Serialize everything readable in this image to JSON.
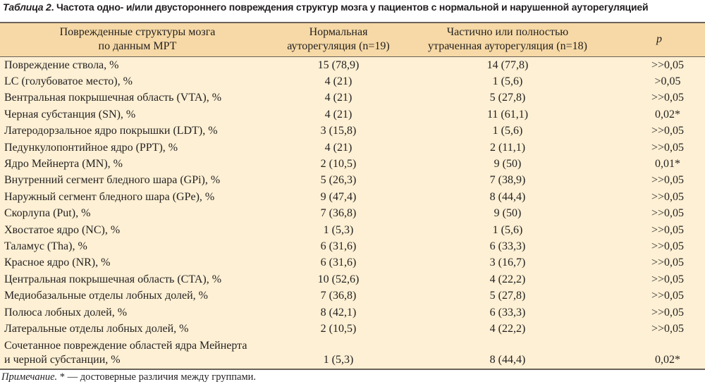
{
  "caption": {
    "label": "Таблица 2",
    "text": ". Частота одно- и/или двустороннего повреждения структур мозга у пациентов с нормальной и нарушенной ауторегуляцией"
  },
  "headers": {
    "structure_l1": "Поврежденные структуры мозга",
    "structure_l2": "по данным МРТ",
    "normal_l1": "Нормальная",
    "normal_l2": "ауторегуляция (n=19)",
    "impaired_l1": "Частично или полностью",
    "impaired_l2": "утраченная ауторегуляция (n=18)",
    "p": "p"
  },
  "rows": [
    {
      "name": "Повреждение ствола, %",
      "normal": "15 (78,9)",
      "impaired": "14 (77,8)",
      "p": ">>0,05"
    },
    {
      "name": "LC (голубоватое место), %",
      "normal": "4 (21)",
      "impaired": "1 (5,6)",
      "p": ">0,05"
    },
    {
      "name": "Вентральная покрышечная область (VTA), %",
      "normal": "4 (21)",
      "impaired": "5 (27,8)",
      "p": ">>0,05"
    },
    {
      "name": "Черная субстанция (SN), %",
      "normal": "4 (21)",
      "impaired": "11 (61,1)",
      "p": "0,02*"
    },
    {
      "name": "Латеродорзальное ядро покрышки (LDT), %",
      "normal": "3 (15,8)",
      "impaired": "1 (5,6)",
      "p": ">>0,05"
    },
    {
      "name": "Педункулопонтийное ядро (PPT), %",
      "normal": "4 (21)",
      "impaired": "2 (11,1)",
      "p": ">>0,05"
    },
    {
      "name": "Ядро Мейнерта (MN), %",
      "normal": "2 (10,5)",
      "impaired": "9 (50)",
      "p": "0,01*"
    },
    {
      "name": "Внутренний сегмент бледного шара (GPi), %",
      "normal": "5 (26,3)",
      "impaired": "7 (38,9)",
      "p": ">>0,05"
    },
    {
      "name": "Наружный сегмент бледного шара (GPe), %",
      "normal": "9 (47,4)",
      "impaired": "8 (44,4)",
      "p": ">>0,05"
    },
    {
      "name": "Скорлупа (Put), %",
      "normal": "7 (36,8)",
      "impaired": "9 (50)",
      "p": ">>0,05"
    },
    {
      "name": "Хвостатое ядро (NC), %",
      "normal": "1 (5,3)",
      "impaired": "1 (5,6)",
      "p": ">>0,05"
    },
    {
      "name": "Таламус (Tha), %",
      "normal": "6 (31,6)",
      "impaired": "6 (33,3)",
      "p": ">>0,05"
    },
    {
      "name": "Красное ядро (NR), %",
      "normal": "6 (31,6)",
      "impaired": "3 (16,7)",
      "p": ">>0,05"
    },
    {
      "name": "Центральная покрышечная область (CTA), %",
      "normal": "10 (52,6)",
      "impaired": "4 (22,2)",
      "p": ">>0,05"
    },
    {
      "name": "Медиобазальные отделы лобных долей, %",
      "normal": "7 (36,8)",
      "impaired": "5 (27,8)",
      "p": ">>0,05"
    },
    {
      "name": "Полюса лобных долей, %",
      "normal": "8 (42,1)",
      "impaired": "6 (33,3)",
      "p": ">>0,05"
    },
    {
      "name": "Латеральные отделы лобных долей, %",
      "normal": "2 (10,5)",
      "impaired": "4 (22,2)",
      "p": ">>0,05"
    },
    {
      "name": "Сочетанное повреждение областей ядра Мейнерта",
      "name_l2": "и черной субстанции, %",
      "normal": "1 (5,3)",
      "impaired": "8 (44,4)",
      "p": "0,02*"
    }
  ],
  "note": {
    "label": "Примечание.",
    "text": " * — достоверные различия между группами."
  },
  "colors": {
    "header_bg": "#f6d9a6",
    "body_bg": "#fdf0d4",
    "rule": "#6b625a"
  }
}
